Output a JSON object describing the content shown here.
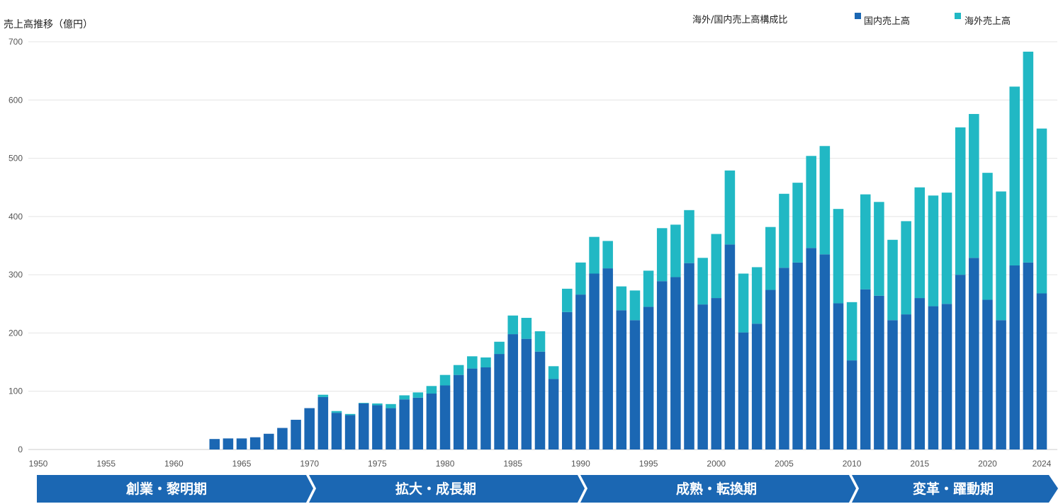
{
  "chart_data": {
    "type": "bar",
    "stacked": true,
    "ylabel": "売上高推移（億円）",
    "legend_title": "海外/国内売上高構成比",
    "legend_position": "top-right",
    "ylim": [
      0,
      700
    ],
    "yticks": [
      0,
      100,
      200,
      300,
      400,
      500,
      600,
      700
    ],
    "xlim": [
      1950,
      2024
    ],
    "xticks": [
      1950,
      1955,
      1960,
      1965,
      1970,
      1975,
      1980,
      1985,
      1990,
      1995,
      2000,
      2005,
      2010,
      2015,
      2020,
      2024
    ],
    "grid": true,
    "colors": {
      "domestic": "#1b67b3",
      "overseas": "#21b8c4",
      "era": "#1b67b3"
    },
    "x": [
      1963,
      1964,
      1965,
      1966,
      1967,
      1968,
      1969,
      1970,
      1971,
      1972,
      1973,
      1974,
      1975,
      1976,
      1977,
      1978,
      1979,
      1980,
      1981,
      1982,
      1983,
      1984,
      1985,
      1986,
      1987,
      1988,
      1989,
      1990,
      1991,
      1992,
      1993,
      1994,
      1995,
      1996,
      1997,
      1998,
      1999,
      2000,
      2001,
      2002,
      2003,
      2004,
      2005,
      2006,
      2007,
      2008,
      2009,
      2010,
      2011,
      2012,
      2013,
      2014,
      2015,
      2016,
      2017,
      2018,
      2019,
      2020,
      2021,
      2022,
      2023,
      2024
    ],
    "series": [
      {
        "name": "国内売上高",
        "values": [
          18,
          19,
          19,
          21,
          27,
          37,
          51,
          71,
          90,
          63,
          59,
          79,
          76,
          71,
          86,
          89,
          96,
          110,
          128,
          139,
          141,
          164,
          198,
          190,
          168,
          121,
          236,
          266,
          302,
          311,
          239,
          222,
          245,
          289,
          296,
          320,
          249,
          260,
          352,
          201,
          216,
          274,
          312,
          321,
          346,
          335,
          251,
          153,
          275,
          264,
          222,
          232,
          260,
          246,
          250,
          300,
          329,
          257,
          222,
          316,
          321,
          268
        ]
      },
      {
        "name": "海外売上高",
        "values": [
          0,
          0,
          0,
          0,
          0,
          0,
          0,
          0,
          4,
          3,
          2,
          1,
          3,
          7,
          7,
          9,
          13,
          18,
          17,
          21,
          17,
          21,
          32,
          36,
          35,
          22,
          40,
          55,
          63,
          47,
          41,
          51,
          62,
          91,
          90,
          91,
          80,
          110,
          127,
          101,
          97,
          108,
          127,
          137,
          158,
          186,
          162,
          100,
          163,
          161,
          138,
          160,
          190,
          190,
          191,
          253,
          247,
          218,
          221,
          307,
          362,
          283
        ]
      }
    ],
    "eras": [
      "創業・黎明期",
      "拡大・成長期",
      "成熟・転換期",
      "変革・躍動期"
    ]
  }
}
